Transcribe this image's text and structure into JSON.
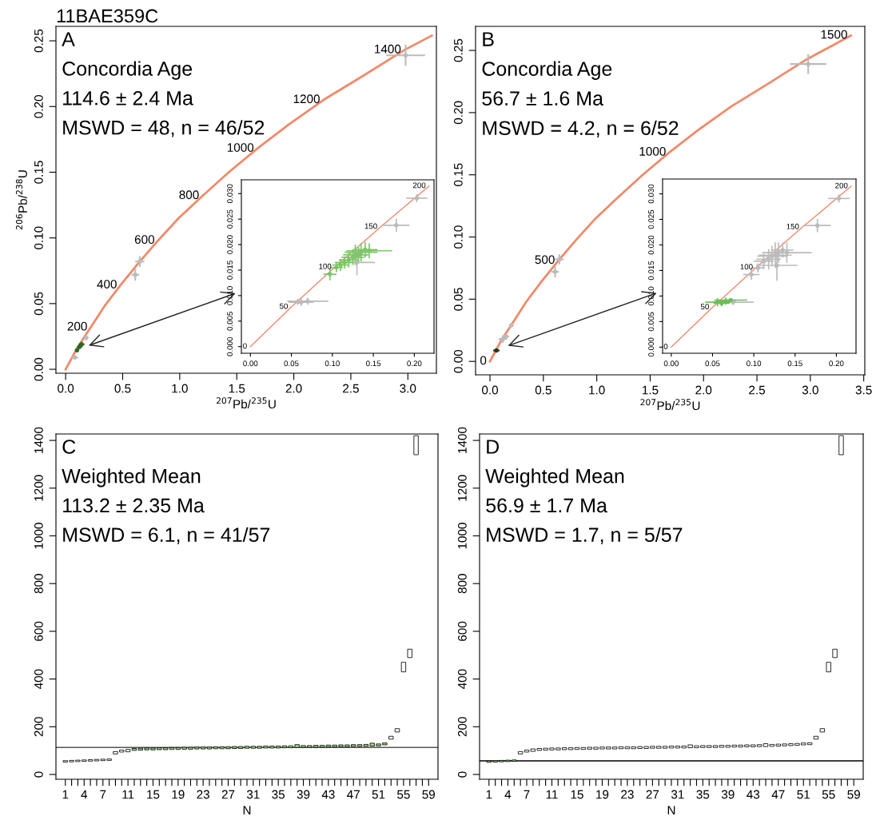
{
  "chart_data": [
    {
      "type": "scatter",
      "title": "11BAE359C",
      "xlabel": "$^{207}$Pb/$^{235}$U",
      "ylabel": "$^{206}$Pb/$^{238}$U",
      "xlim": [
        -0.085,
        3.25
      ],
      "ylim": [
        -0.003,
        0.261
      ],
      "xticks": [
        {
          "value": 0,
          "label": "0.0"
        },
        0.5,
        {
          "value": 1,
          "label": "1.0"
        },
        1.5,
        {
          "value": 2,
          "label": "2.0"
        },
        2.5,
        {
          "value": 3,
          "label": "3.0"
        }
      ],
      "yticks": [
        {
          "value": 0,
          "label": "0.00"
        },
        0.05,
        {
          "value": 0.1,
          "label": "0.10"
        },
        0.15,
        {
          "value": 0.2,
          "label": "0.20"
        },
        0.25
      ],
      "grid": false,
      "series": [
        {
          "type": "line",
          "color": "#f08a6a",
          "x": [
            0,
            0.05,
            0.1,
            0.16,
            0.22,
            0.34,
            0.48,
            0.64,
            0.81,
            0.99,
            1.2,
            1.43,
            1.68,
            1.95,
            2.26,
            2.6,
            2.97,
            3.21
          ],
          "values": [
            0,
            0.008,
            0.016,
            0.024,
            0.032,
            0.048,
            0.064,
            0.081,
            0.098,
            0.115,
            0.132,
            0.15,
            0.168,
            0.186,
            0.205,
            0.223,
            0.243,
            0.254
          ]
        },
        {
          "type": "scatter",
          "marker": "circle",
          "color": "#bbbbbb",
          "x": [
            0.65,
            0.61,
            2.98,
            0.08,
            0.18
          ],
          "values": [
            0.082,
            0.072,
            0.239,
            0.009,
            0.024
          ],
          "xerrors": [
            0.04,
            0.035,
            0.17,
            0.03,
            0.02
          ],
          "errors": [
            0.004,
            0.0045,
            0.008,
            0.001,
            0.002
          ]
        },
        {
          "type": "scatter",
          "marker": "circle",
          "color": "#2f6a25",
          "x": [
            0.1,
            0.12,
            0.13,
            0.14
          ],
          "values": [
            0.0145,
            0.017,
            0.018,
            0.019
          ],
          "xerrors": [
            0.015,
            0.02,
            0.02,
            0.025
          ],
          "errors": [
            0.0015,
            0.0015,
            0.0018,
            0.0018
          ]
        }
      ],
      "annotations": [
        "A",
        "Concordia Age",
        "114.6 ± 2.4 Ma",
        "MSWD = 48, n = 46/52",
        {
          "text": "200",
          "x": 0.22,
          "y": 0.032
        },
        {
          "text": "400",
          "x": 0.48,
          "y": 0.064
        },
        {
          "text": "600",
          "x": 0.81,
          "y": 0.098
        },
        {
          "text": "800",
          "x": 1.2,
          "y": 0.132
        },
        {
          "text": "1000",
          "x": 1.68,
          "y": 0.168
        },
        {
          "text": "1200",
          "x": 2.26,
          "y": 0.205
        },
        {
          "text": "1400",
          "x": 2.97,
          "y": 0.243
        }
      ]
    },
    {
      "type": "scatter",
      "xlim": [
        -0.011,
        0.224
      ],
      "ylim": [
        -0.0013,
        0.0327
      ],
      "xticks": [
        {
          "value": 0,
          "label": "0.00"
        },
        0.05,
        {
          "value": 0.1,
          "label": "0.10"
        },
        0.15,
        {
          "value": 0.2,
          "label": "0.20"
        }
      ],
      "yticks": [
        {
          "value": 0,
          "label": "0.000"
        },
        0.005,
        {
          "value": 0.01,
          "label": "0.010"
        },
        0.015,
        {
          "value": 0.02,
          "label": "0.020"
        },
        0.025,
        {
          "value": 0.03,
          "label": "0.030"
        }
      ],
      "grid": false,
      "series": [
        {
          "type": "line",
          "color": "#f08a6a",
          "x": [
            0,
            0.05,
            0.103,
            0.159,
            0.218
          ],
          "values": [
            0,
            0.0078,
            0.0156,
            0.0235,
            0.0315
          ]
        },
        {
          "type": "scatter",
          "marker": "circle",
          "color": "#bbbbbb",
          "x": [
            0.058,
            0.062,
            0.07,
            0.13,
            0.178,
            0.203
          ],
          "values": [
            0.0088,
            0.0087,
            0.0089,
            0.0165,
            0.0238,
            0.0291
          ],
          "xerrors": [
            0.012,
            0.015,
            0.025,
            0.022,
            0.016,
            0.013
          ],
          "errors": [
            0.0006,
            0.0007,
            0.0007,
            0.0025,
            0.0013,
            0.0008
          ]
        },
        {
          "type": "scatter",
          "marker": "circle",
          "color": "#7ec56b",
          "x": [
            0.097,
            0.105,
            0.11,
            0.115,
            0.12,
            0.125,
            0.128,
            0.132,
            0.135,
            0.14,
            0.145
          ],
          "values": [
            0.0142,
            0.0155,
            0.016,
            0.0165,
            0.017,
            0.0175,
            0.018,
            0.018,
            0.0185,
            0.019,
            0.0188
          ],
          "xerrors": [
            0.008,
            0.008,
            0.01,
            0.012,
            0.012,
            0.014,
            0.015,
            0.012,
            0.02,
            0.015,
            0.028
          ],
          "errors": [
            0.0012,
            0.0009,
            0.0012,
            0.0012,
            0.0015,
            0.0015,
            0.002,
            0.0015,
            0.0018,
            0.0015,
            0.0015
          ]
        }
      ],
      "annotations": [
        {
          "text": "0",
          "x": 0,
          "y": 0
        },
        {
          "text": "50",
          "x": 0.05,
          "y": 0.0078
        },
        {
          "text": "100",
          "x": 0.103,
          "y": 0.0156
        },
        {
          "text": "150",
          "x": 0.159,
          "y": 0.0235
        },
        {
          "text": "200",
          "x": 0.218,
          "y": 0.0315
        }
      ]
    },
    {
      "type": "scatter",
      "xlabel": "$^{207}$Pb/$^{235}$U",
      "xlim": [
        -0.135,
        3.51
      ],
      "ylim": [
        -0.0108,
        0.2693
      ],
      "xticks": [
        {
          "value": 0,
          "label": "0.0"
        },
        0.5,
        {
          "value": 1,
          "label": "1.0"
        },
        1.5,
        {
          "value": 2,
          "label": "2.0"
        },
        2.5,
        {
          "value": 3,
          "label": "3.0"
        },
        3.5
      ],
      "yticks": [
        {
          "value": 0,
          "label": "0.00"
        },
        0.05,
        {
          "value": 0.1,
          "label": "0.10"
        },
        0.15,
        {
          "value": 0.2,
          "label": "0.20"
        },
        0.25
      ],
      "grid": false,
      "series": [
        {
          "type": "line",
          "color": "#f08a6a",
          "x": [
            0,
            0.05,
            0.1,
            0.16,
            0.22,
            0.34,
            0.48,
            0.64,
            0.81,
            0.99,
            1.2,
            1.43,
            1.68,
            1.95,
            2.26,
            2.6,
            2.97,
            3.21,
            3.38
          ],
          "values": [
            0,
            0.008,
            0.016,
            0.024,
            0.032,
            0.048,
            0.064,
            0.081,
            0.098,
            0.115,
            0.132,
            0.15,
            0.168,
            0.186,
            0.205,
            0.223,
            0.243,
            0.254,
            0.262
          ]
        },
        {
          "type": "scatter",
          "marker": "circle",
          "color": "#bbbbbb",
          "x": [
            0.65,
            0.61,
            2.98,
            0.12,
            0.15,
            0.2
          ],
          "values": [
            0.082,
            0.072,
            0.239,
            0.018,
            0.02,
            0.029
          ],
          "xerrors": [
            0.04,
            0.035,
            0.17,
            0.04,
            0.03,
            0.02
          ],
          "errors": [
            0.004,
            0.0045,
            0.008,
            0.003,
            0.002,
            0.001
          ]
        },
        {
          "type": "scatter",
          "marker": "circle",
          "color": "#1e3a18",
          "x": [
            0.06
          ],
          "values": [
            0.0088
          ],
          "xerrors": [
            0.03
          ],
          "errors": [
            0.0009
          ]
        }
      ],
      "annotations": [
        "B",
        "Concordia Age",
        "56.7 ± 1.6 Ma",
        "MSWD = 4.2, n = 6/52",
        {
          "text": "0",
          "x": 0,
          "y": 0
        },
        {
          "text": "500",
          "x": 0.64,
          "y": 0.081
        },
        {
          "text": "1000",
          "x": 1.68,
          "y": 0.168
        },
        {
          "text": "1500",
          "x": 3.38,
          "y": 0.262
        }
      ]
    },
    {
      "type": "scatter",
      "xlim": [
        -0.0105,
        0.2238
      ],
      "ylim": [
        -0.0012,
        0.0329
      ],
      "xticks": [
        {
          "value": 0,
          "label": "0.00"
        },
        0.05,
        {
          "value": 0.1,
          "label": "0.10"
        },
        0.15,
        {
          "value": 0.2,
          "label": "0.20"
        }
      ],
      "yticks": [
        {
          "value": 0,
          "label": "0.000"
        },
        0.005,
        {
          "value": 0.01,
          "label": "0.010"
        },
        0.015,
        {
          "value": 0.02,
          "label": "0.020"
        },
        0.025,
        {
          "value": 0.03,
          "label": "0.030"
        }
      ],
      "grid": false,
      "series": [
        {
          "type": "line",
          "color": "#f08a6a",
          "x": [
            0,
            0.05,
            0.103,
            0.159,
            0.218
          ],
          "values": [
            0,
            0.0078,
            0.0156,
            0.0235,
            0.0315
          ]
        },
        {
          "type": "scatter",
          "marker": "circle",
          "color": "#bbbbbb",
          "x": [
            0.097,
            0.105,
            0.112,
            0.118,
            0.122,
            0.126,
            0.13,
            0.135,
            0.128,
            0.14,
            0.177,
            0.203,
            0.075
          ],
          "values": [
            0.0142,
            0.0155,
            0.0168,
            0.0172,
            0.0178,
            0.018,
            0.0185,
            0.019,
            0.016,
            0.0185,
            0.0238,
            0.0291,
            0.0088
          ],
          "xerrors": [
            0.01,
            0.008,
            0.012,
            0.015,
            0.018,
            0.02,
            0.015,
            0.013,
            0.025,
            0.03,
            0.016,
            0.013,
            0.025
          ],
          "errors": [
            0.001,
            0.0009,
            0.0015,
            0.002,
            0.002,
            0.0025,
            0.002,
            0.0015,
            0.003,
            0.002,
            0.0013,
            0.0008,
            0.0006
          ]
        },
        {
          "type": "scatter",
          "marker": "circle",
          "color": "#6cbf58",
          "x": [
            0.056,
            0.061,
            0.066,
            0.072
          ],
          "values": [
            0.0088,
            0.0086,
            0.009,
            0.0092
          ],
          "xerrors": [
            0.015,
            0.01,
            0.012,
            0.02
          ],
          "errors": [
            0.0008,
            0.0006,
            0.0007,
            0.0004
          ]
        }
      ],
      "annotations": [
        {
          "text": "0",
          "x": 0,
          "y": 0
        },
        {
          "text": "50",
          "x": 0.05,
          "y": 0.0078
        },
        {
          "text": "100",
          "x": 0.103,
          "y": 0.0156
        },
        {
          "text": "150",
          "x": 0.159,
          "y": 0.0235
        },
        {
          "text": "200",
          "x": 0.218,
          "y": 0.0315
        }
      ]
    },
    {
      "type": "bar",
      "xlabel": "N",
      "ylim": [
        -20,
        1427
      ],
      "yticks": [
        0,
        200,
        400,
        600,
        800,
        1000,
        1200,
        1400
      ],
      "grid": false,
      "categories": [
        "1",
        null,
        null,
        "4",
        null,
        null,
        "7",
        null,
        null,
        null,
        "11",
        null,
        null,
        null,
        "15",
        null,
        null,
        null,
        "19",
        null,
        null,
        null,
        "23",
        null,
        null,
        null,
        "27",
        null,
        null,
        null,
        "31",
        null,
        null,
        null,
        "35",
        null,
        null,
        null,
        "39",
        null,
        null,
        null,
        "43",
        null,
        null,
        null,
        "47",
        null,
        null,
        null,
        "51",
        null,
        null,
        null,
        "55",
        null,
        null,
        null,
        "59"
      ],
      "base": [
        52,
        53,
        54,
        55,
        56,
        57,
        58,
        59,
        86,
        94,
        95,
        101,
        102,
        103,
        103,
        104,
        104,
        105,
        105,
        106,
        106,
        107,
        107,
        107,
        108,
        108,
        108,
        109,
        109,
        110,
        110,
        110,
        111,
        111,
        111,
        112,
        112,
        113,
        113,
        113,
        114,
        114,
        115,
        115,
        116,
        116,
        117,
        117,
        118,
        119,
        120,
        124,
        148,
        178,
        430,
        490,
        1340,
        null,
        null
      ],
      "values": [
        6,
        6,
        6,
        6,
        6,
        6,
        6,
        6,
        10,
        8,
        10,
        8,
        8,
        8,
        8,
        8,
        8,
        8,
        8,
        8,
        8,
        8,
        8,
        8,
        8,
        8,
        8,
        8,
        8,
        8,
        8,
        8,
        8,
        8,
        8,
        8,
        8,
        12,
        8,
        8,
        8,
        8,
        8,
        8,
        8,
        8,
        8,
        8,
        8,
        12,
        8,
        8,
        12,
        14,
        40,
        35,
        80,
        null,
        null
      ],
      "colors": [
        "#ffffff",
        "#ffffff",
        "#ffffff",
        "#ffffff",
        "#ffffff",
        "#ffffff",
        "#ffffff",
        "#ffffff",
        "#ffffff",
        "#ffffff",
        "#ffffff",
        "#a6d98f",
        "#a6d98f",
        "#a6d98f",
        "#a6d98f",
        "#a6d98f",
        "#a6d98f",
        "#a6d98f",
        "#a6d98f",
        "#a6d98f",
        "#a6d98f",
        "#a6d98f",
        "#a6d98f",
        "#a6d98f",
        "#a6d98f",
        "#a6d98f",
        "#a6d98f",
        "#a6d98f",
        "#a6d98f",
        "#a6d98f",
        "#a6d98f",
        "#a6d98f",
        "#a6d98f",
        "#a6d98f",
        "#a6d98f",
        "#a6d98f",
        "#a6d98f",
        "#a6d98f",
        "#a6d98f",
        "#a6d98f",
        "#a6d98f",
        "#a6d98f",
        "#a6d98f",
        "#a6d98f",
        "#a6d98f",
        "#a6d98f",
        "#a6d98f",
        "#a6d98f",
        "#a6d98f",
        "#a6d98f",
        "#a6d98f",
        "#a6d98f",
        "#ffffff",
        "#ffffff",
        "#ffffff",
        "#ffffff",
        "#ffffff",
        "#ffffff",
        "#ffffff"
      ],
      "ref_lines": [
        {
          "axis": "y",
          "value": 113.2,
          "color": "#555555"
        }
      ],
      "annotations": [
        "C",
        "Weighted Mean",
        "113.2 ± 2.35 Ma",
        "MSWD = 6.1, n = 41/57"
      ]
    },
    {
      "type": "bar",
      "xlabel": "N",
      "ylim": [
        -20,
        1427
      ],
      "yticks": [
        0,
        200,
        400,
        600,
        800,
        1000,
        1200,
        1400
      ],
      "grid": false,
      "categories": [
        "1",
        null,
        null,
        "4",
        null,
        null,
        "7",
        null,
        null,
        null,
        "11",
        null,
        null,
        null,
        "15",
        null,
        null,
        null,
        "19",
        null,
        null,
        null,
        "23",
        null,
        null,
        null,
        "27",
        null,
        null,
        null,
        "31",
        null,
        null,
        null,
        "35",
        null,
        null,
        null,
        "39",
        null,
        null,
        null,
        "43",
        null,
        null,
        null,
        "47",
        null,
        null,
        null,
        "51",
        null,
        null,
        null,
        "55",
        null,
        null,
        null,
        "59"
      ],
      "base": [
        51,
        52,
        53,
        54,
        55,
        86,
        94,
        97,
        101,
        102,
        103,
        103,
        104,
        104,
        105,
        105,
        106,
        106,
        107,
        107,
        107,
        108,
        108,
        108,
        109,
        109,
        110,
        110,
        110,
        111,
        111,
        111,
        112,
        112,
        113,
        113,
        113,
        114,
        114,
        115,
        115,
        116,
        116,
        117,
        117,
        118,
        119,
        120,
        121,
        122,
        124,
        125,
        148,
        178,
        430,
        490,
        1340,
        null,
        null
      ],
      "values": [
        6,
        6,
        6,
        6,
        6,
        10,
        8,
        10,
        8,
        8,
        8,
        8,
        8,
        8,
        8,
        8,
        8,
        8,
        8,
        8,
        8,
        8,
        8,
        8,
        8,
        8,
        8,
        8,
        8,
        8,
        8,
        8,
        12,
        8,
        8,
        8,
        8,
        8,
        8,
        8,
        8,
        8,
        8,
        8,
        12,
        8,
        8,
        8,
        8,
        8,
        8,
        8,
        12,
        14,
        40,
        35,
        80,
        null,
        null
      ],
      "colors": [
        "#a6d98f",
        "#a6d98f",
        "#a6d98f",
        "#a6d98f",
        "#a6d98f",
        "#ffffff",
        "#ffffff",
        "#ffffff",
        "#ffffff",
        "#ffffff",
        "#ffffff",
        "#ffffff",
        "#ffffff",
        "#ffffff",
        "#ffffff",
        "#ffffff",
        "#ffffff",
        "#ffffff",
        "#ffffff",
        "#ffffff",
        "#ffffff",
        "#ffffff",
        "#ffffff",
        "#ffffff",
        "#ffffff",
        "#ffffff",
        "#ffffff",
        "#ffffff",
        "#ffffff",
        "#ffffff",
        "#ffffff",
        "#ffffff",
        "#ffffff",
        "#ffffff",
        "#ffffff",
        "#ffffff",
        "#ffffff",
        "#ffffff",
        "#ffffff",
        "#ffffff",
        "#ffffff",
        "#ffffff",
        "#ffffff",
        "#ffffff",
        "#ffffff",
        "#ffffff",
        "#ffffff",
        "#ffffff",
        "#ffffff",
        "#ffffff",
        "#ffffff",
        "#ffffff",
        "#ffffff",
        "#ffffff",
        "#ffffff",
        "#ffffff",
        "#ffffff",
        "#ffffff",
        "#ffffff"
      ],
      "ref_lines": [
        {
          "axis": "y",
          "value": 56.9,
          "color": "#000000"
        }
      ],
      "annotations": [
        "D",
        "Weighted Mean",
        "56.9 ± 1.7 Ma",
        "MSWD = 1.7, n = 5/57"
      ]
    }
  ]
}
